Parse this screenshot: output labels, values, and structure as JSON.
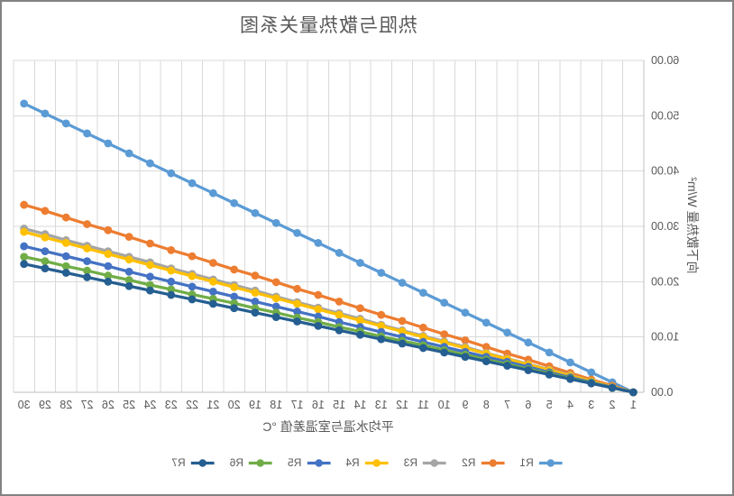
{
  "chart_data": {
    "type": "line",
    "title": "热阻与散热量关系图",
    "xlabel": "平均水温与室温差值 °C",
    "ylabel": "向下散热量 W/m²",
    "categories": [
      "1",
      "2",
      "3",
      "4",
      "5",
      "6",
      "7",
      "8",
      "9",
      "10",
      "11",
      "12",
      "13",
      "14",
      "15",
      "16",
      "17",
      "18",
      "19",
      "20",
      "21",
      "22",
      "23",
      "24",
      "25",
      "26",
      "27",
      "28",
      "29",
      "30"
    ],
    "ylim": [
      0,
      60
    ],
    "y_tick_labels": [
      "0.00",
      "10.00",
      "20.00",
      "30.00",
      "40.00",
      "50.00",
      "60.00"
    ],
    "y_tick_values": [
      0,
      10,
      20,
      30,
      40,
      50,
      60
    ],
    "grid": true,
    "legend_position": "bottom",
    "mirrored_horizontally": true,
    "marker": "circle",
    "series": [
      {
        "name": "R1",
        "color": "#5B9BD5",
        "values": [
          0.0,
          1.8,
          3.6,
          5.4,
          7.2,
          9.0,
          10.8,
          12.6,
          14.4,
          16.2,
          18.0,
          19.8,
          21.6,
          23.4,
          25.2,
          27.0,
          28.8,
          30.6,
          32.4,
          34.2,
          36.0,
          37.8,
          39.6,
          41.4,
          43.2,
          45.0,
          46.8,
          48.6,
          50.4,
          52.2
        ]
      },
      {
        "name": "R2",
        "color": "#ED7D31",
        "values": [
          0.0,
          1.2,
          2.3,
          3.5,
          4.7,
          5.9,
          7.0,
          8.2,
          9.4,
          10.5,
          11.7,
          12.9,
          14.0,
          15.2,
          16.4,
          17.6,
          18.7,
          19.9,
          21.1,
          22.2,
          23.4,
          24.6,
          25.7,
          26.9,
          28.1,
          29.3,
          30.4,
          31.6,
          32.8,
          33.9
        ]
      },
      {
        "name": "R3",
        "color": "#A5A5A5",
        "values": [
          0.0,
          1.0,
          2.0,
          3.1,
          4.1,
          5.1,
          6.1,
          7.1,
          8.2,
          9.2,
          10.2,
          11.2,
          12.2,
          13.3,
          14.3,
          15.3,
          16.3,
          17.3,
          18.4,
          19.4,
          20.4,
          21.4,
          22.4,
          23.5,
          24.5,
          25.5,
          26.5,
          27.5,
          28.6,
          29.6
        ]
      },
      {
        "name": "R4",
        "color": "#FFC000",
        "values": [
          0.0,
          1.0,
          2.0,
          3.0,
          4.0,
          5.0,
          6.0,
          7.0,
          8.0,
          9.0,
          10.0,
          11.0,
          12.0,
          13.0,
          14.0,
          15.0,
          16.0,
          17.0,
          18.0,
          19.0,
          20.0,
          21.0,
          22.0,
          23.0,
          24.0,
          25.0,
          26.0,
          27.0,
          28.0,
          29.0
        ]
      },
      {
        "name": "R5",
        "color": "#4472C4",
        "values": [
          0.0,
          0.9,
          1.8,
          2.7,
          3.6,
          4.6,
          5.5,
          6.4,
          7.3,
          8.2,
          9.1,
          10.0,
          10.9,
          11.8,
          12.7,
          13.7,
          14.6,
          15.5,
          16.4,
          17.3,
          18.2,
          19.1,
          20.0,
          20.9,
          21.8,
          22.8,
          23.7,
          24.6,
          25.5,
          26.4
        ]
      },
      {
        "name": "R6",
        "color": "#70AD47",
        "values": [
          0.0,
          0.8,
          1.7,
          2.5,
          3.4,
          4.2,
          5.1,
          5.9,
          6.8,
          7.6,
          8.5,
          9.3,
          10.1,
          11.0,
          11.8,
          12.7,
          13.5,
          14.4,
          15.2,
          16.1,
          16.9,
          17.7,
          18.6,
          19.4,
          20.3,
          21.1,
          22.0,
          22.8,
          23.7,
          24.5
        ]
      },
      {
        "name": "R7",
        "color": "#255E91",
        "values": [
          0.0,
          0.8,
          1.6,
          2.4,
          3.2,
          4.0,
          4.8,
          5.6,
          6.4,
          7.2,
          8.0,
          8.8,
          9.6,
          10.4,
          11.2,
          12.0,
          12.8,
          13.6,
          14.4,
          15.2,
          16.0,
          16.8,
          17.6,
          18.4,
          19.2,
          20.0,
          20.8,
          21.6,
          22.4,
          23.2
        ]
      }
    ],
    "style": {
      "gridline_color": "#D9D9D9",
      "axis_line_color": "#BFBFBF",
      "text_color": "#595959",
      "frame_border_color": "#828282",
      "line_width": 3.25,
      "marker_radius": 4.4
    }
  }
}
